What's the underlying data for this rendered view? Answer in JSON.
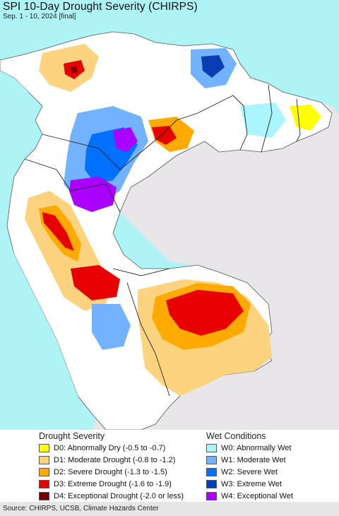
{
  "header": {
    "title": "SPI 10-Day Drought Severity (CHIRPS)",
    "subtitle": "Sep. 1 - 10, 2024 [final]"
  },
  "colors": {
    "ocean": "#aef4f6",
    "land_neutral": "#ffffff",
    "outside_land": "#e9e6ea",
    "border": "#222222"
  },
  "legend": {
    "drought": {
      "heading": "Drought Severity",
      "items": [
        {
          "label": "D0: Abnormally Dry (-0.5 to -0.7)",
          "color": "#ffff00"
        },
        {
          "label": "D1: Moderate Drought (-0.8 to -1.2)",
          "color": "#fcd37f"
        },
        {
          "label": "D2: Severe Drought (-1.3 to -1.5)",
          "color": "#ffaa00"
        },
        {
          "label": "D3: Extreme Drought (-1.6 to -1.9)",
          "color": "#e60000"
        },
        {
          "label": "D4: Exceptional Drought (-2.0 or less)",
          "color": "#730000"
        }
      ]
    },
    "wet": {
      "heading": "Wet Conditions",
      "items": [
        {
          "label": "W0: Abnormally Wet",
          "color": "#aaf5ff"
        },
        {
          "label": "W1: Moderate Wet",
          "color": "#73b2ff"
        },
        {
          "label": "W2: Severe Wet",
          "color": "#0070ff"
        },
        {
          "label": "W3: Extreme Wet",
          "color": "#0a3cb4"
        },
        {
          "label": "W4: Exceptional Wet",
          "color": "#aa00ff"
        }
      ]
    }
  },
  "footer": {
    "source": "Source: CHIRPS, UCSB, Climate Hazards Center"
  }
}
